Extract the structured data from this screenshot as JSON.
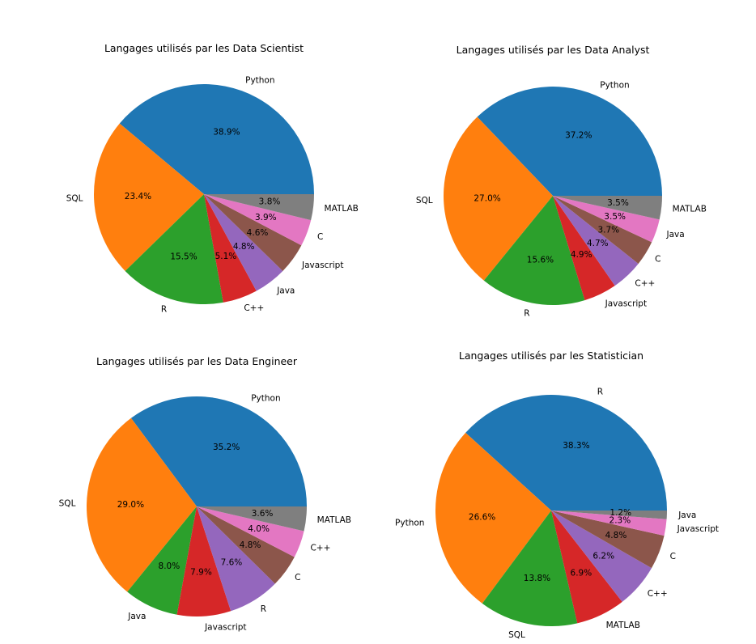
{
  "chart_data": [
    {
      "type": "pie",
      "title": "Langages utilisés par les Data Scientist",
      "slices": [
        {
          "label": "Python",
          "value": 38.9
        },
        {
          "label": "SQL",
          "value": 23.4
        },
        {
          "label": "R",
          "value": 15.5
        },
        {
          "label": "C++",
          "value": 5.1
        },
        {
          "label": "Java",
          "value": 4.8
        },
        {
          "label": "Javascript",
          "value": 4.6
        },
        {
          "label": "C",
          "value": 3.9
        },
        {
          "label": "MATLAB",
          "value": 3.8
        }
      ]
    },
    {
      "type": "pie",
      "title": "Langages utilisés par les Data Analyst",
      "slices": [
        {
          "label": "Python",
          "value": 37.2
        },
        {
          "label": "SQL",
          "value": 27.0
        },
        {
          "label": "R",
          "value": 15.6
        },
        {
          "label": "Javascript",
          "value": 4.9
        },
        {
          "label": "C++",
          "value": 4.7
        },
        {
          "label": "C",
          "value": 3.7
        },
        {
          "label": "Java",
          "value": 3.5
        },
        {
          "label": "MATLAB",
          "value": 3.5
        }
      ]
    },
    {
      "type": "pie",
      "title": "Langages utilisés par les Data Engineer",
      "slices": [
        {
          "label": "Python",
          "value": 35.2
        },
        {
          "label": "SQL",
          "value": 29.0
        },
        {
          "label": "Java",
          "value": 8.0
        },
        {
          "label": "Javascript",
          "value": 7.9
        },
        {
          "label": "R",
          "value": 7.6
        },
        {
          "label": "C",
          "value": 4.8
        },
        {
          "label": "C++",
          "value": 4.0
        },
        {
          "label": "MATLAB",
          "value": 3.6
        }
      ]
    },
    {
      "type": "pie",
      "title": "Langages utilisés par les Statistician",
      "slices": [
        {
          "label": "R",
          "value": 38.3
        },
        {
          "label": "Python",
          "value": 26.6
        },
        {
          "label": "SQL",
          "value": 13.8
        },
        {
          "label": "MATLAB",
          "value": 6.9
        },
        {
          "label": "C++",
          "value": 6.2
        },
        {
          "label": "C",
          "value": 4.8
        },
        {
          "label": "Javascript",
          "value": 2.3
        },
        {
          "label": "Java",
          "value": 1.2
        }
      ]
    }
  ],
  "colors": [
    "#1f77b4",
    "#ff7f0e",
    "#2ca02c",
    "#d62728",
    "#9467bd",
    "#8c564b",
    "#e377c2",
    "#7f7f7f"
  ]
}
